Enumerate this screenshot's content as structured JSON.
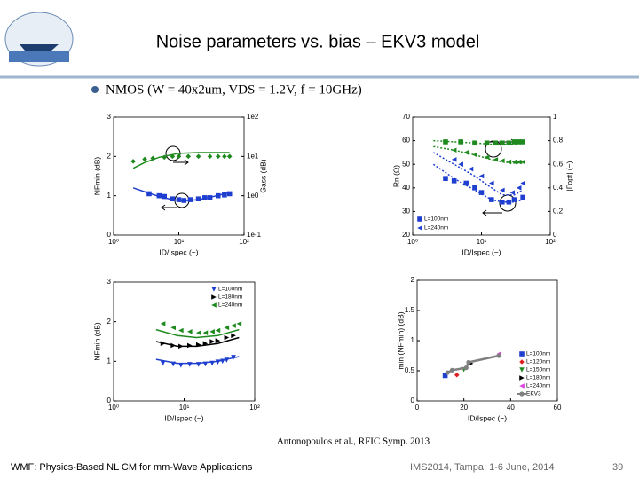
{
  "header": {
    "title": "Noise parameters vs. bias – EKV3 model",
    "bullet": "NMOS (W = 40x2um, VDS = 1.2V, f = 10GHz)"
  },
  "citation": "Antonopoulos et al., RFIC Symp. 2013",
  "footer": {
    "left": "WMF: Physics-Based NL CM for mm-Wave Applications",
    "center": "IMS2014, Tampa, 1-6 June, 2014",
    "page": "39"
  },
  "chart_data": [
    {
      "type": "line",
      "xlabel": "ID/Ispec (−)",
      "ylabel": "NFmin (dB)",
      "y2label": "Gass (dB)",
      "xscale": "log",
      "xlim": [
        1,
        100
      ],
      "xticks": [
        {
          "value": 1,
          "label": "10⁰"
        },
        {
          "value": 10,
          "label": "10¹"
        },
        {
          "value": 100,
          "label": "10²"
        }
      ],
      "ylim": [
        0,
        3
      ],
      "yticks": [
        0,
        1,
        2,
        3
      ],
      "y2scale": "log",
      "y2lim": [
        0.1,
        100
      ],
      "y2ticks": [
        {
          "value": 0.1,
          "label": "1e-1"
        },
        {
          "value": 1,
          "label": "1e0"
        },
        {
          "value": 10,
          "label": "1e1"
        },
        {
          "value": 100,
          "label": "1e2"
        }
      ],
      "series": [
        {
          "color": "#1f3fd0",
          "style": "markers",
          "marker": "square",
          "x": [
            3.5,
            5,
            6,
            8,
            10,
            12,
            15,
            20,
            25,
            30,
            40,
            50,
            60
          ],
          "values": [
            1.05,
            1.0,
            0.98,
            0.92,
            0.9,
            0.88,
            0.9,
            0.92,
            0.95,
            0.95,
            1.0,
            1.02,
            1.05
          ]
        },
        {
          "color": "#1f3fd0",
          "style": "line",
          "x": [
            2,
            3,
            5,
            8,
            12,
            20,
            30,
            45,
            60
          ],
          "values": [
            1.2,
            1.1,
            0.98,
            0.9,
            0.87,
            0.9,
            0.96,
            1.03,
            1.08
          ]
        },
        {
          "color": "#1f8a1f",
          "style": "markers",
          "marker": "diamond",
          "axis": "y2",
          "x": [
            2,
            3,
            4,
            6,
            8,
            10,
            14,
            20,
            30,
            40,
            50,
            60
          ],
          "values": [
            7.5,
            8.5,
            9,
            9.5,
            10,
            10,
            10,
            10,
            10,
            10,
            10,
            10
          ]
        },
        {
          "color": "#1f8a1f",
          "style": "line",
          "axis": "y2",
          "x": [
            2,
            3,
            5,
            10,
            20,
            40,
            60
          ],
          "values": [
            5,
            7,
            9.5,
            12,
            12.5,
            12.5,
            12.5
          ]
        }
      ]
    },
    {
      "type": "line",
      "xlabel": "ID/Ispec (−)",
      "ylabel": "Rn (Ω)",
      "y2label": "|Γopt| (−)",
      "xscale": "log",
      "xlim": [
        1,
        100
      ],
      "xticks": [
        {
          "value": 1,
          "label": "10⁰"
        },
        {
          "value": 10,
          "label": "10¹"
        },
        {
          "value": 100,
          "label": "10²"
        }
      ],
      "ylim": [
        20,
        70
      ],
      "yticks": [
        20,
        30,
        40,
        50,
        60,
        70
      ],
      "y2lim": [
        0,
        1
      ],
      "y2ticks": [
        0,
        0.2,
        0.4,
        0.6,
        0.8,
        1
      ],
      "legend": "lower left",
      "series": [
        {
          "name": "L=100nm",
          "color": "#1f3fd0",
          "style": "markers",
          "marker": "square",
          "x": [
            3,
            4,
            6,
            8,
            10,
            14,
            20,
            25,
            30,
            40
          ],
          "values": [
            44,
            43,
            42,
            40,
            38,
            35,
            34,
            34,
            35,
            36
          ]
        },
        {
          "name": "L=240nm",
          "color": "#1f3fd0",
          "style": "markers",
          "marker": "trileft",
          "x": [
            4,
            5,
            7,
            10,
            14,
            20,
            28,
            35,
            40
          ],
          "values": [
            52,
            50,
            48,
            45,
            42,
            39,
            38,
            40,
            42
          ]
        },
        {
          "color": "#1f8a1f",
          "style": "markers",
          "marker": "square",
          "axis": "y2",
          "x": [
            3,
            5,
            8,
            12,
            16,
            20,
            25,
            30,
            35,
            40
          ],
          "values": [
            0.79,
            0.79,
            0.78,
            0.78,
            0.78,
            0.78,
            0.78,
            0.79,
            0.79,
            0.79
          ]
        },
        {
          "color": "#1f8a1f",
          "style": "markers",
          "marker": "trileft",
          "axis": "y2",
          "x": [
            4,
            6,
            8,
            12,
            16,
            20,
            25,
            30,
            35,
            40
          ],
          "values": [
            0.72,
            0.7,
            0.68,
            0.66,
            0.64,
            0.63,
            0.62,
            0.62,
            0.62,
            0.62
          ]
        },
        {
          "color": "#1f3fd0",
          "style": "dotted",
          "x": [
            2,
            4,
            8,
            14,
            20,
            30,
            40
          ],
          "values": [
            50,
            44,
            39,
            35,
            34,
            34,
            35
          ]
        },
        {
          "color": "#1f3fd0",
          "style": "dotted",
          "x": [
            2,
            4,
            8,
            14,
            20,
            30,
            40
          ],
          "values": [
            55,
            50,
            45,
            40,
            37,
            37,
            39
          ]
        },
        {
          "color": "#1f8a1f",
          "style": "dotted",
          "axis": "y2",
          "x": [
            2,
            4,
            8,
            14,
            20,
            30,
            40
          ],
          "values": [
            0.8,
            0.79,
            0.78,
            0.77,
            0.77,
            0.77,
            0.78
          ]
        },
        {
          "color": "#1f8a1f",
          "style": "dotted",
          "axis": "y2",
          "x": [
            2,
            4,
            8,
            14,
            20,
            30,
            40
          ],
          "values": [
            0.75,
            0.72,
            0.68,
            0.64,
            0.62,
            0.61,
            0.61
          ]
        }
      ]
    },
    {
      "type": "line",
      "xlabel": "ID/Ispec (−)",
      "ylabel": "NFmin (dB)",
      "xscale": "log",
      "xlim": [
        1,
        100
      ],
      "xticks": [
        {
          "value": 1,
          "label": "10⁰"
        },
        {
          "value": 10,
          "label": "10¹"
        },
        {
          "value": 100,
          "label": "10²"
        }
      ],
      "ylim": [
        0,
        3
      ],
      "yticks": [
        0,
        1,
        2,
        3
      ],
      "legend": "upper right",
      "series": [
        {
          "name": "L=100nm",
          "color": "#1f3fd0",
          "style": "markers",
          "marker": "tridown",
          "x": [
            5,
            7,
            9,
            12,
            16,
            20,
            25,
            30,
            35,
            40,
            50
          ],
          "values": [
            0.95,
            0.93,
            0.9,
            0.92,
            0.92,
            0.93,
            0.95,
            0.98,
            1.0,
            1.03,
            1.1
          ]
        },
        {
          "name": "L=180nm",
          "color": "#000000",
          "style": "markers",
          "marker": "triright",
          "x": [
            5,
            7,
            9,
            12,
            16,
            20,
            25,
            30,
            40,
            50
          ],
          "values": [
            1.45,
            1.4,
            1.38,
            1.4,
            1.42,
            1.45,
            1.5,
            1.52,
            1.6,
            1.65
          ]
        },
        {
          "name": "L=240nm",
          "color": "#1f8a1f",
          "style": "markers",
          "marker": "trileft",
          "x": [
            5,
            7,
            9,
            12,
            16,
            20,
            25,
            30,
            40,
            50,
            60
          ],
          "values": [
            1.95,
            1.85,
            1.78,
            1.75,
            1.72,
            1.72,
            1.75,
            1.78,
            1.85,
            1.9,
            1.95
          ]
        },
        {
          "color": "#1f3fd0",
          "style": "line",
          "x": [
            4,
            8,
            15,
            30,
            60
          ],
          "values": [
            1.05,
            0.95,
            0.95,
            1.0,
            1.12
          ]
        },
        {
          "color": "#000000",
          "style": "line",
          "x": [
            4,
            8,
            15,
            30,
            60
          ],
          "values": [
            1.5,
            1.38,
            1.38,
            1.45,
            1.6
          ]
        },
        {
          "color": "#1f8a1f",
          "style": "line",
          "x": [
            4,
            8,
            15,
            30,
            60
          ],
          "values": [
            1.8,
            1.65,
            1.6,
            1.65,
            1.8
          ]
        }
      ]
    },
    {
      "type": "scatter",
      "xlabel": "ID/Ispec (−)",
      "ylabel": "min (NFmin) (dB)",
      "xlim": [
        0,
        60
      ],
      "xticks": [
        0,
        20,
        40,
        60
      ],
      "ylim": [
        0,
        2
      ],
      "yticks": [
        0,
        0.5,
        1,
        1.5,
        2
      ],
      "legend": "lower right",
      "series": [
        {
          "name": "L=100nm",
          "color": "#1f3fd0",
          "style": "markers",
          "marker": "square",
          "x": [
            12
          ],
          "values": [
            0.42
          ]
        },
        {
          "name": "L=120nm",
          "color": "#e02020",
          "style": "markers",
          "marker": "diamond",
          "x": [
            17
          ],
          "values": [
            0.43
          ]
        },
        {
          "name": "L=150nm",
          "color": "#1f8a1f",
          "style": "markers",
          "marker": "tridown",
          "x": [
            20
          ],
          "values": [
            0.52
          ]
        },
        {
          "name": "L=180nm",
          "color": "#000000",
          "style": "markers",
          "marker": "triright",
          "x": [
            23
          ],
          "values": [
            0.62
          ]
        },
        {
          "name": "L=240nm",
          "color": "#e040e0",
          "style": "markers",
          "marker": "trileft",
          "x": [
            35
          ],
          "values": [
            0.78
          ]
        },
        {
          "name": "EKV3",
          "color": "#808080",
          "style": "line+markers",
          "marker": "circle",
          "x": [
            13,
            15,
            21,
            22,
            35
          ],
          "values": [
            0.47,
            0.51,
            0.55,
            0.64,
            0.75
          ]
        }
      ]
    }
  ]
}
